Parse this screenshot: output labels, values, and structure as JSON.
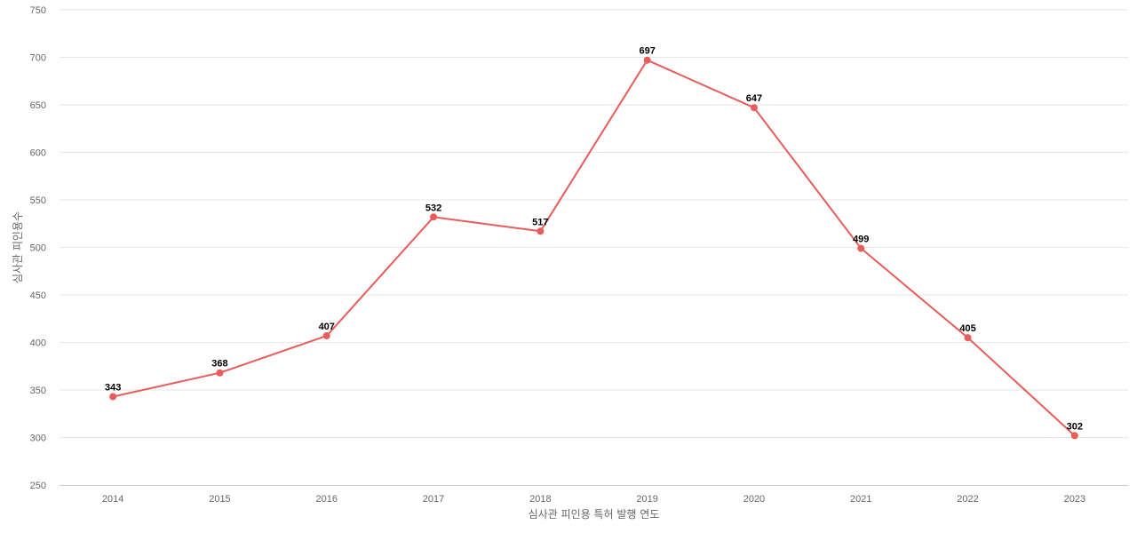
{
  "chart_data": {
    "type": "line",
    "title": "",
    "xlabel": "심사관 피인용 특허 발행 연도",
    "ylabel": "심사관 피인용수",
    "categories": [
      "2014",
      "2015",
      "2016",
      "2017",
      "2018",
      "2019",
      "2020",
      "2021",
      "2022",
      "2023"
    ],
    "series": [
      {
        "values": [
          343,
          368,
          407,
          532,
          517,
          697,
          647,
          499,
          405,
          302
        ],
        "color": "#e85c5c"
      }
    ],
    "ylim": [
      250,
      750
    ],
    "yticks": [
      "250",
      "300",
      "350",
      "400",
      "450",
      "500",
      "550",
      "600",
      "650",
      "700",
      "750"
    ],
    "grid": true,
    "data_labels": true,
    "legend": "none"
  }
}
